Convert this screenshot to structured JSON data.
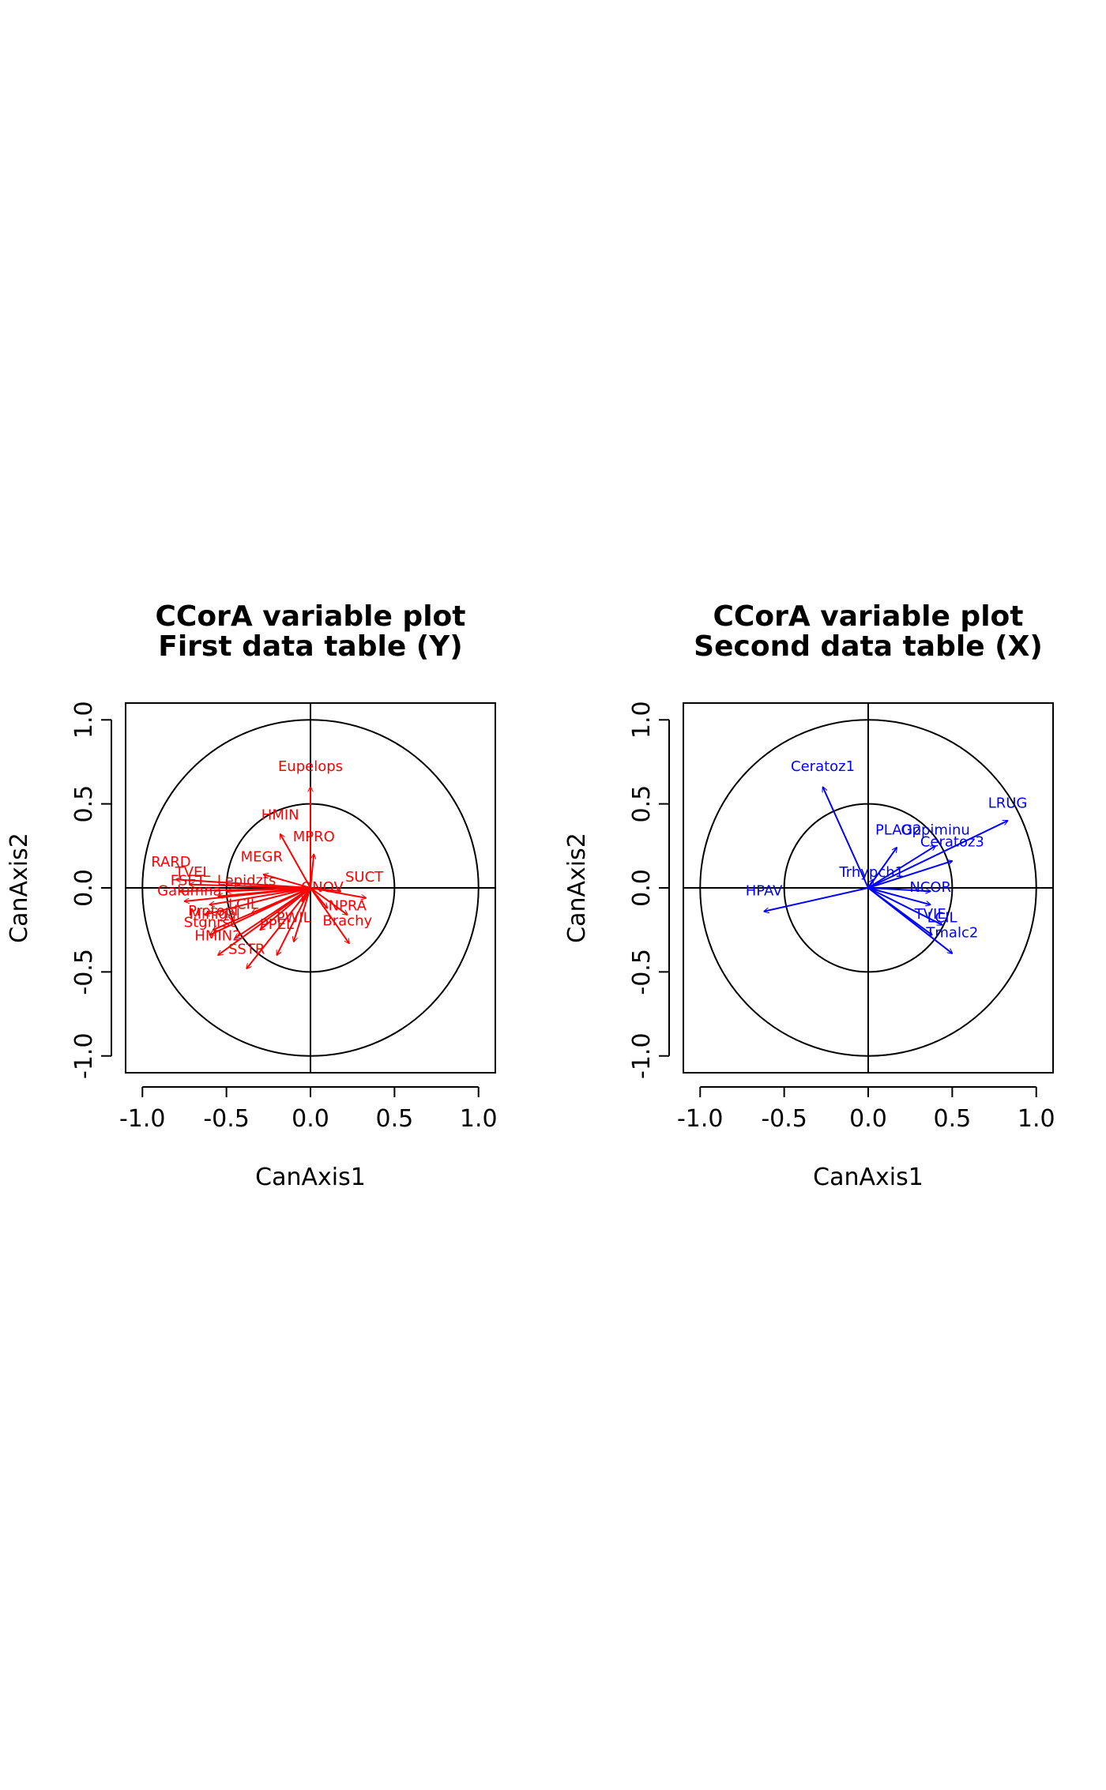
{
  "chart_data": [
    {
      "type": "scatter",
      "title": "CCorA variable plot",
      "subtitle": "First data table (Y)",
      "xlabel": "CanAxis1",
      "ylabel": "CanAxis2",
      "xlim": [
        -1.1,
        1.1
      ],
      "ylim": [
        -1.1,
        1.1
      ],
      "xticks": [
        -1.0,
        -0.5,
        0.0,
        0.5,
        1.0
      ],
      "yticks": [
        -1.0,
        -0.5,
        0.0,
        0.5,
        1.0
      ],
      "xtick_labels": [
        "-1.0",
        "-0.5",
        "0.0",
        "0.5",
        "1.0"
      ],
      "ytick_labels": [
        "-1.0",
        "-0.5",
        "0.0",
        "0.5",
        "1.0"
      ],
      "circles": [
        0.5,
        1.0
      ],
      "color": "#ff0000",
      "arrows": [
        {
          "label": "Eupelops",
          "x": 0.0,
          "y": 0.6,
          "lx": 0.0,
          "ly": 0.72
        },
        {
          "label": "HMIN",
          "x": -0.18,
          "y": 0.32,
          "lx": -0.18,
          "ly": 0.43
        },
        {
          "label": "MPRO",
          "x": 0.02,
          "y": 0.2,
          "lx": 0.02,
          "ly": 0.3
        },
        {
          "label": "MEGR",
          "x": -0.28,
          "y": 0.08,
          "lx": -0.29,
          "ly": 0.18
        },
        {
          "label": "RARD",
          "x": -0.8,
          "y": 0.05,
          "lx": -0.83,
          "ly": 0.15
        },
        {
          "label": "TVEL",
          "x": -0.72,
          "y": 0.02,
          "lx": -0.7,
          "ly": 0.09
        },
        {
          "label": "FSET",
          "x": -0.78,
          "y": -0.02,
          "lx": -0.73,
          "ly": 0.04
        },
        {
          "label": "Galumna",
          "x": -0.75,
          "y": -0.08,
          "lx": -0.72,
          "ly": -0.02
        },
        {
          "label": "Lepidzts",
          "x": -0.5,
          "y": -0.02,
          "lx": -0.38,
          "ly": 0.04
        },
        {
          "label": "ONOV",
          "x": 0.18,
          "y": -0.02,
          "lx": 0.07,
          "ly": 0.0
        },
        {
          "label": "SUCT",
          "x": 0.33,
          "y": -0.06,
          "lx": 0.32,
          "ly": 0.06
        },
        {
          "label": "NPRA",
          "x": 0.22,
          "y": -0.16,
          "lx": 0.22,
          "ly": -0.11
        },
        {
          "label": "Brachy",
          "x": 0.23,
          "y": -0.33,
          "lx": 0.22,
          "ly": -0.2
        },
        {
          "label": "Protopl",
          "x": -0.63,
          "y": -0.16,
          "lx": -0.58,
          "ly": -0.14
        },
        {
          "label": "Minigal",
          "x": -0.58,
          "y": -0.25,
          "lx": -0.57,
          "ly": -0.16
        },
        {
          "label": "Stgnrst",
          "x": -0.6,
          "y": -0.28,
          "lx": -0.6,
          "ly": -0.21
        },
        {
          "label": "HMIN2",
          "x": -0.55,
          "y": -0.4,
          "lx": -0.55,
          "ly": -0.29
        },
        {
          "label": "SSTR",
          "x": -0.38,
          "y": -0.48,
          "lx": -0.38,
          "ly": -0.37
        },
        {
          "label": "PPEL",
          "x": -0.2,
          "y": -0.4,
          "lx": -0.2,
          "ly": -0.22
        },
        {
          "label": "PWIL",
          "x": -0.1,
          "y": -0.32,
          "lx": -0.1,
          "ly": -0.18
        },
        {
          "label": "LCIL",
          "x": -0.45,
          "y": -0.3,
          "lx": -0.4,
          "ly": -0.1
        },
        {
          "label": "",
          "x": -0.55,
          "y": -0.05,
          "lx": 0,
          "ly": 0
        },
        {
          "label": "",
          "x": -0.6,
          "y": -0.1,
          "lx": 0,
          "ly": 0
        },
        {
          "label": "",
          "x": -0.35,
          "y": -0.15,
          "lx": 0,
          "ly": 0
        },
        {
          "label": "",
          "x": -0.3,
          "y": -0.25,
          "lx": 0,
          "ly": 0
        },
        {
          "label": "",
          "x": 0.1,
          "y": -0.12,
          "lx": 0,
          "ly": 0
        },
        {
          "label": "",
          "x": -0.05,
          "y": -0.08,
          "lx": 0,
          "ly": 0
        }
      ]
    },
    {
      "type": "scatter",
      "title": "CCorA variable plot",
      "subtitle": "Second data table (X)",
      "xlabel": "CanAxis1",
      "ylabel": "CanAxis2",
      "xlim": [
        -1.1,
        1.1
      ],
      "ylim": [
        -1.1,
        1.1
      ],
      "xticks": [
        -1.0,
        -0.5,
        0.0,
        0.5,
        1.0
      ],
      "yticks": [
        -1.0,
        -0.5,
        0.0,
        0.5,
        1.0
      ],
      "xtick_labels": [
        "-1.0",
        "-0.5",
        "0.0",
        "0.5",
        "1.0"
      ],
      "ytick_labels": [
        "-1.0",
        "-0.5",
        "0.0",
        "0.5",
        "1.0"
      ],
      "circles": [
        0.5,
        1.0
      ],
      "color": "#0000ff",
      "arrows": [
        {
          "label": "Ceratoz1",
          "x": -0.27,
          "y": 0.6,
          "lx": -0.27,
          "ly": 0.72
        },
        {
          "label": "LRUG",
          "x": 0.83,
          "y": 0.4,
          "lx": 0.83,
          "ly": 0.5
        },
        {
          "label": "PLAG2",
          "x": 0.17,
          "y": 0.24,
          "lx": 0.18,
          "ly": 0.34
        },
        {
          "label": "Oppiminu",
          "x": 0.4,
          "y": 0.25,
          "lx": 0.4,
          "ly": 0.34
        },
        {
          "label": "Ceratoz3",
          "x": 0.5,
          "y": 0.16,
          "lx": 0.5,
          "ly": 0.27
        },
        {
          "label": "Trhypch1",
          "x": 0.03,
          "y": 0.05,
          "lx": 0.02,
          "ly": 0.09
        },
        {
          "label": "HPAV",
          "x": -0.62,
          "y": -0.14,
          "lx": -0.62,
          "ly": -0.02
        },
        {
          "label": "NCOR",
          "x": 0.37,
          "y": -0.02,
          "lx": 0.37,
          "ly": 0.0
        },
        {
          "label": "TVIE",
          "x": 0.37,
          "y": -0.1,
          "lx": 0.37,
          "ly": -0.16
        },
        {
          "label": "LCIL",
          "x": 0.44,
          "y": -0.22,
          "lx": 0.44,
          "ly": -0.18
        },
        {
          "label": "Tmalc2",
          "x": 0.5,
          "y": -0.39,
          "lx": 0.5,
          "ly": -0.27
        },
        {
          "label": "",
          "x": 0.38,
          "y": -0.28,
          "lx": 0,
          "ly": 0
        }
      ]
    }
  ]
}
